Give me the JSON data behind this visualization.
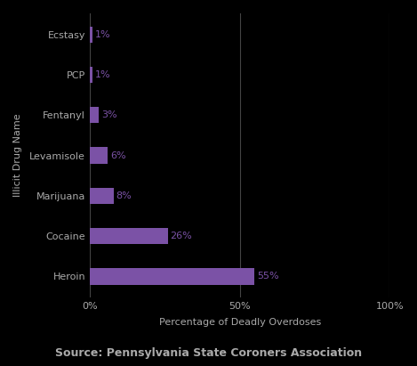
{
  "categories": [
    "Heroin",
    "Cocaine",
    "Marijuana",
    "Levamisole",
    "Fentanyl",
    "PCP",
    "Ecstasy"
  ],
  "values": [
    55,
    26,
    8,
    6,
    3,
    1,
    1
  ],
  "bar_color": "#7b52a6",
  "bar_height": 0.4,
  "xlabel": "Percentage of Deadly Overdoses",
  "ylabel": "Illicit Drug Name",
  "source": "Source: Pennsylvania State Coroners Association",
  "xlim": [
    0,
    100
  ],
  "xticks": [
    0,
    50,
    100
  ],
  "xtick_labels": [
    "0%",
    "50%",
    "100%"
  ],
  "grid_color": "#444444",
  "bg_color": "#000000",
  "text_color": "#aaaaaa",
  "label_color": "#7b52a6",
  "label_fontsize": 8,
  "tick_fontsize": 8,
  "source_fontsize": 9,
  "ylabel_fontsize": 8,
  "xlabel_fontsize": 8
}
